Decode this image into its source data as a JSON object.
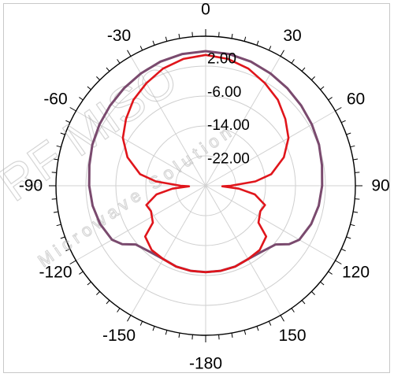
{
  "chart_data": {
    "type": "polar-line",
    "angle_labels": [
      "0",
      "30",
      "60",
      "90",
      "120",
      "150",
      "-180",
      "-150",
      "-120",
      "-90",
      "-60",
      "-30"
    ],
    "radial_ticks": [
      2.0,
      -6.0,
      -14.0,
      -22.0
    ],
    "radial_tick_labels": [
      "2.00",
      "-6.00",
      "-14.00",
      "-22.00"
    ],
    "rlim": [
      -30,
      6
    ],
    "grid": true,
    "series": [
      {
        "color": "#7a4a6e",
        "points": [
          [
            0,
            2.4
          ],
          [
            10,
            2.2
          ],
          [
            20,
            1.8
          ],
          [
            30,
            1.2
          ],
          [
            40,
            0.6
          ],
          [
            50,
            0.0
          ],
          [
            60,
            -0.5
          ],
          [
            70,
            -1.0
          ],
          [
            80,
            -1.6
          ],
          [
            90,
            -2.0
          ],
          [
            100,
            -2.4
          ],
          [
            110,
            -3.0
          ],
          [
            120,
            -4.0
          ],
          [
            125,
            -5.5
          ],
          [
            130,
            -8.0
          ],
          [
            140,
            -9.2
          ],
          [
            150,
            -9.6
          ],
          [
            160,
            -9.3
          ],
          [
            170,
            -9.2
          ],
          [
            180,
            -9.2
          ],
          [
            -170,
            -9.2
          ],
          [
            -160,
            -9.3
          ],
          [
            -150,
            -9.6
          ],
          [
            -140,
            -9.2
          ],
          [
            -130,
            -8.0
          ],
          [
            -125,
            -5.5
          ],
          [
            -120,
            -4.0
          ],
          [
            -110,
            -3.0
          ],
          [
            -100,
            -2.4
          ],
          [
            -90,
            -2.0
          ],
          [
            -80,
            -1.6
          ],
          [
            -70,
            -1.0
          ],
          [
            -60,
            -0.5
          ],
          [
            -50,
            0.0
          ],
          [
            -40,
            0.6
          ],
          [
            -30,
            1.2
          ],
          [
            -20,
            1.8
          ],
          [
            -10,
            2.2
          ],
          [
            0,
            2.4
          ]
        ]
      },
      {
        "color": "#e0151b",
        "points": [
          [
            0,
            1.5
          ],
          [
            10,
            1.0
          ],
          [
            20,
            0.0
          ],
          [
            30,
            -1.5
          ],
          [
            40,
            -3.0
          ],
          [
            50,
            -5.0
          ],
          [
            60,
            -7.0
          ],
          [
            70,
            -10.0
          ],
          [
            80,
            -14.0
          ],
          [
            85,
            -18.0
          ],
          [
            90,
            -24.0
          ],
          [
            92,
            -26.0
          ],
          [
            95,
            -22.0
          ],
          [
            100,
            -18.0
          ],
          [
            108,
            -15.0
          ],
          [
            115,
            -15.5
          ],
          [
            125,
            -14.5
          ],
          [
            130,
            -11.0
          ],
          [
            140,
            -9.8
          ],
          [
            150,
            -9.6
          ],
          [
            160,
            -9.3
          ],
          [
            170,
            -9.2
          ],
          [
            180,
            -9.2
          ],
          [
            -170,
            -9.2
          ],
          [
            -160,
            -9.3
          ],
          [
            -150,
            -9.6
          ],
          [
            -140,
            -9.8
          ],
          [
            -130,
            -11.0
          ],
          [
            -125,
            -14.5
          ],
          [
            -115,
            -15.5
          ],
          [
            -108,
            -15.0
          ],
          [
            -100,
            -18.0
          ],
          [
            -95,
            -22.0
          ],
          [
            -92,
            -26.0
          ],
          [
            -90,
            -24.0
          ],
          [
            -85,
            -18.0
          ],
          [
            -80,
            -14.0
          ],
          [
            -70,
            -10.0
          ],
          [
            -60,
            -7.0
          ],
          [
            -50,
            -5.0
          ],
          [
            -40,
            -3.0
          ],
          [
            -30,
            -1.5
          ],
          [
            -20,
            0.0
          ],
          [
            -10,
            1.0
          ],
          [
            0,
            1.5
          ]
        ]
      }
    ]
  },
  "watermark": {
    "main": "RF MISO",
    "sub": "Microwave Solution"
  }
}
